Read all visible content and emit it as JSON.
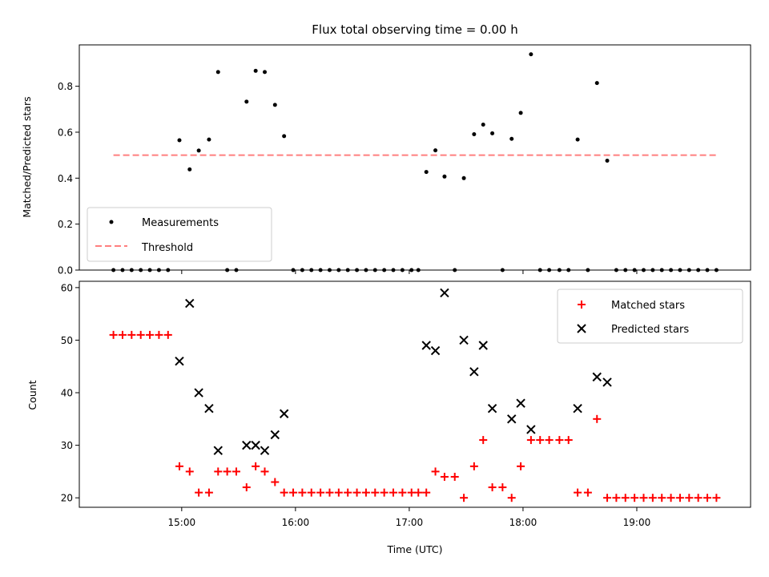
{
  "title": "Flux total observing time = 0.00 h",
  "colors": {
    "matched": "#ff0000",
    "predicted": "#000000",
    "threshold": "#ff7f7f",
    "measurement": "#000000"
  },
  "chart_data": [
    {
      "type": "scatter",
      "panel": "top",
      "title": "Flux total observing time = 0.00 h",
      "xlabel": "",
      "ylabel": "Matched/Predicted stars",
      "x_unit": "hours UTC",
      "xlim": [
        14.1,
        20.0
      ],
      "ylim": [
        0.0,
        0.98
      ],
      "yticks": [
        "0.0",
        "0.2",
        "0.4",
        "0.6",
        "0.8"
      ],
      "ytick_values": [
        0,
        0.2,
        0.4,
        0.6,
        0.8
      ],
      "legend_position": "lower-left",
      "threshold": {
        "name": "Threshold",
        "y": 0.5,
        "x": [
          14.4,
          19.7
        ]
      },
      "series": [
        {
          "name": "Measurements",
          "points": [
            [
              14.4,
              0
            ],
            [
              14.48,
              0
            ],
            [
              14.56,
              0
            ],
            [
              14.64,
              0
            ],
            [
              14.72,
              0
            ],
            [
              14.8,
              0
            ],
            [
              14.88,
              0
            ],
            [
              14.98,
              0.565
            ],
            [
              15.07,
              0.438
            ],
            [
              15.15,
              0.52
            ],
            [
              15.24,
              0.568
            ],
            [
              15.32,
              0.862
            ],
            [
              15.4,
              0
            ],
            [
              15.48,
              0
            ],
            [
              15.57,
              0.733
            ],
            [
              15.65,
              0.867
            ],
            [
              15.73,
              0.862
            ],
            [
              15.82,
              0.719
            ],
            [
              15.9,
              0.583
            ],
            [
              15.98,
              0
            ],
            [
              16.06,
              0
            ],
            [
              16.14,
              0
            ],
            [
              16.22,
              0
            ],
            [
              16.3,
              0
            ],
            [
              16.38,
              0
            ],
            [
              16.46,
              0
            ],
            [
              16.54,
              0
            ],
            [
              16.62,
              0
            ],
            [
              16.7,
              0
            ],
            [
              16.78,
              0
            ],
            [
              16.86,
              0
            ],
            [
              16.94,
              0
            ],
            [
              17.02,
              0
            ],
            [
              17.08,
              0
            ],
            [
              17.15,
              0.427
            ],
            [
              17.23,
              0.521
            ],
            [
              17.31,
              0.407
            ],
            [
              17.4,
              0
            ],
            [
              17.48,
              0.4
            ],
            [
              17.57,
              0.591
            ],
            [
              17.65,
              0.633
            ],
            [
              17.73,
              0.595
            ],
            [
              17.82,
              0
            ],
            [
              17.9,
              0.571
            ],
            [
              17.98,
              0.684
            ],
            [
              18.07,
              0.939
            ],
            [
              18.15,
              0
            ],
            [
              18.23,
              0
            ],
            [
              18.32,
              0
            ],
            [
              18.4,
              0
            ],
            [
              18.48,
              0.568
            ],
            [
              18.57,
              0
            ],
            [
              18.65,
              0.814
            ],
            [
              18.74,
              0.476
            ],
            [
              18.82,
              0
            ],
            [
              18.9,
              0
            ],
            [
              18.98,
              0
            ],
            [
              19.06,
              0
            ],
            [
              19.14,
              0
            ],
            [
              19.22,
              0
            ],
            [
              19.3,
              0
            ],
            [
              19.38,
              0
            ],
            [
              19.46,
              0
            ],
            [
              19.54,
              0
            ],
            [
              19.62,
              0
            ],
            [
              19.7,
              0
            ]
          ]
        }
      ]
    },
    {
      "type": "scatter",
      "panel": "bottom",
      "xlabel": "Time (UTC)",
      "ylabel": "Count",
      "x_unit": "hours UTC",
      "xlim": [
        14.1,
        20.0
      ],
      "ylim": [
        18.2,
        61.2
      ],
      "xticks": [
        "15:00",
        "16:00",
        "17:00",
        "18:00",
        "19:00"
      ],
      "xtick_values": [
        15,
        16,
        17,
        18,
        19
      ],
      "yticks": [
        "20",
        "30",
        "40",
        "50",
        "60"
      ],
      "ytick_values": [
        20,
        30,
        40,
        50,
        60
      ],
      "legend_position": "top-right",
      "series": [
        {
          "name": "Matched stars",
          "marker": "plus",
          "points": [
            [
              14.4,
              51
            ],
            [
              14.48,
              51
            ],
            [
              14.56,
              51
            ],
            [
              14.64,
              51
            ],
            [
              14.72,
              51
            ],
            [
              14.8,
              51
            ],
            [
              14.88,
              51
            ],
            [
              14.98,
              26
            ],
            [
              15.07,
              25
            ],
            [
              15.15,
              21
            ],
            [
              15.24,
              21
            ],
            [
              15.32,
              25
            ],
            [
              15.4,
              25
            ],
            [
              15.48,
              25
            ],
            [
              15.57,
              22
            ],
            [
              15.65,
              26
            ],
            [
              15.73,
              25
            ],
            [
              15.82,
              23
            ],
            [
              15.9,
              21
            ],
            [
              15.98,
              21
            ],
            [
              16.06,
              21
            ],
            [
              16.14,
              21
            ],
            [
              16.22,
              21
            ],
            [
              16.3,
              21
            ],
            [
              16.38,
              21
            ],
            [
              16.46,
              21
            ],
            [
              16.54,
              21
            ],
            [
              16.62,
              21
            ],
            [
              16.7,
              21
            ],
            [
              16.78,
              21
            ],
            [
              16.86,
              21
            ],
            [
              16.94,
              21
            ],
            [
              17.02,
              21
            ],
            [
              17.08,
              21
            ],
            [
              17.15,
              21
            ],
            [
              17.23,
              25
            ],
            [
              17.31,
              24
            ],
            [
              17.4,
              24
            ],
            [
              17.48,
              20
            ],
            [
              17.57,
              26
            ],
            [
              17.65,
              31
            ],
            [
              17.73,
              22
            ],
            [
              17.82,
              22
            ],
            [
              17.9,
              20
            ],
            [
              17.98,
              26
            ],
            [
              18.07,
              31
            ],
            [
              18.15,
              31
            ],
            [
              18.23,
              31
            ],
            [
              18.32,
              31
            ],
            [
              18.4,
              31
            ],
            [
              18.48,
              21
            ],
            [
              18.57,
              21
            ],
            [
              18.65,
              35
            ],
            [
              18.74,
              20
            ],
            [
              18.82,
              20
            ],
            [
              18.9,
              20
            ],
            [
              18.98,
              20
            ],
            [
              19.06,
              20
            ],
            [
              19.14,
              20
            ],
            [
              19.22,
              20
            ],
            [
              19.3,
              20
            ],
            [
              19.38,
              20
            ],
            [
              19.46,
              20
            ],
            [
              19.54,
              20
            ],
            [
              19.62,
              20
            ],
            [
              19.7,
              20
            ]
          ]
        },
        {
          "name": "Predicted stars",
          "marker": "x",
          "points": [
            [
              14.98,
              46
            ],
            [
              15.07,
              57
            ],
            [
              15.15,
              40
            ],
            [
              15.24,
              37
            ],
            [
              15.32,
              29
            ],
            [
              15.57,
              30
            ],
            [
              15.65,
              30
            ],
            [
              15.73,
              29
            ],
            [
              15.82,
              32
            ],
            [
              15.9,
              36
            ],
            [
              17.15,
              49
            ],
            [
              17.23,
              48
            ],
            [
              17.31,
              59
            ],
            [
              17.48,
              50
            ],
            [
              17.57,
              44
            ],
            [
              17.65,
              49
            ],
            [
              17.73,
              37
            ],
            [
              17.9,
              35
            ],
            [
              17.98,
              38
            ],
            [
              18.07,
              33
            ],
            [
              18.48,
              37
            ],
            [
              18.65,
              43
            ],
            [
              18.74,
              42
            ]
          ]
        }
      ]
    }
  ]
}
